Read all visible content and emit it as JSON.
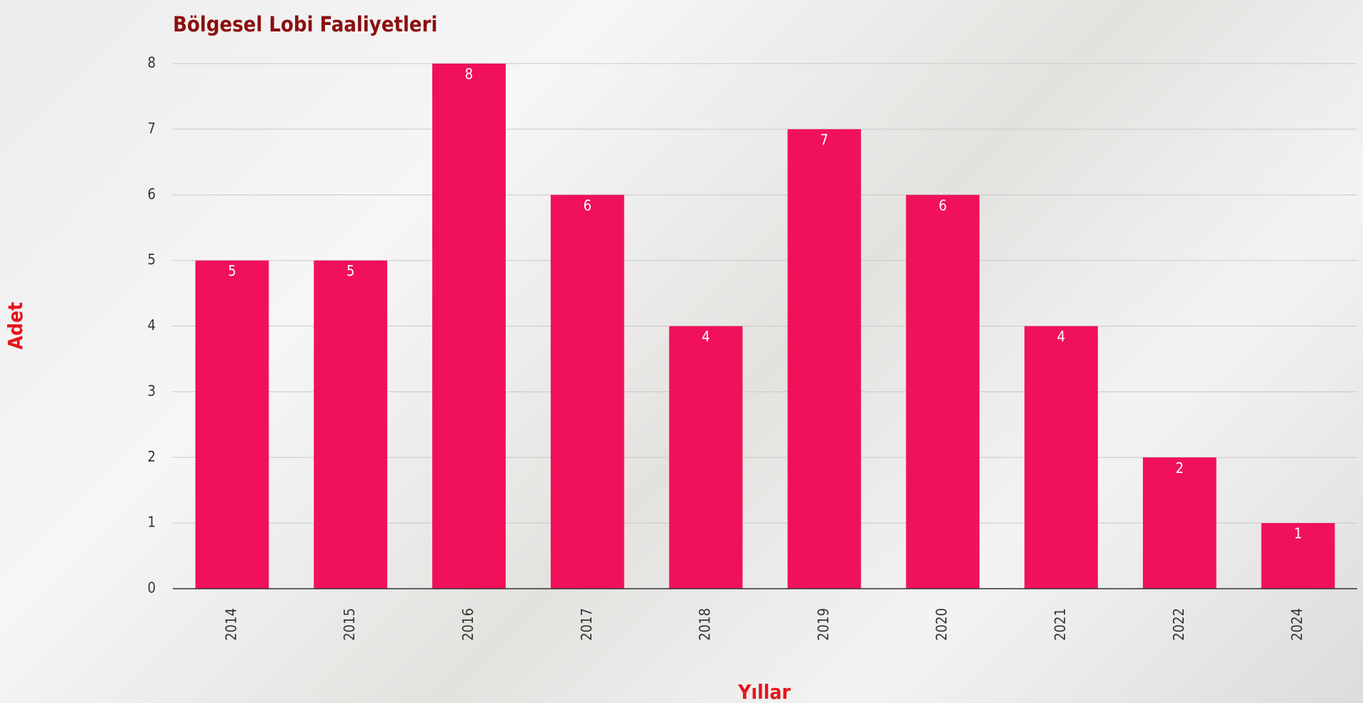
{
  "chart_data": {
    "type": "bar",
    "title": "Bölgesel Lobi Faaliyetleri",
    "x_label": "Yıllar",
    "y_label": "Adet",
    "categories": [
      "2014",
      "2015",
      "2016",
      "2017",
      "2018",
      "2019",
      "2020",
      "2021",
      "2022",
      "2024"
    ],
    "values": [
      5,
      5,
      8,
      6,
      4,
      7,
      6,
      4,
      2,
      1
    ],
    "color": "#f0115a",
    "ylim": [
      0,
      8
    ],
    "yticks": [
      0,
      1,
      2,
      3,
      4,
      5,
      6,
      7,
      8
    ],
    "grid": true
  }
}
